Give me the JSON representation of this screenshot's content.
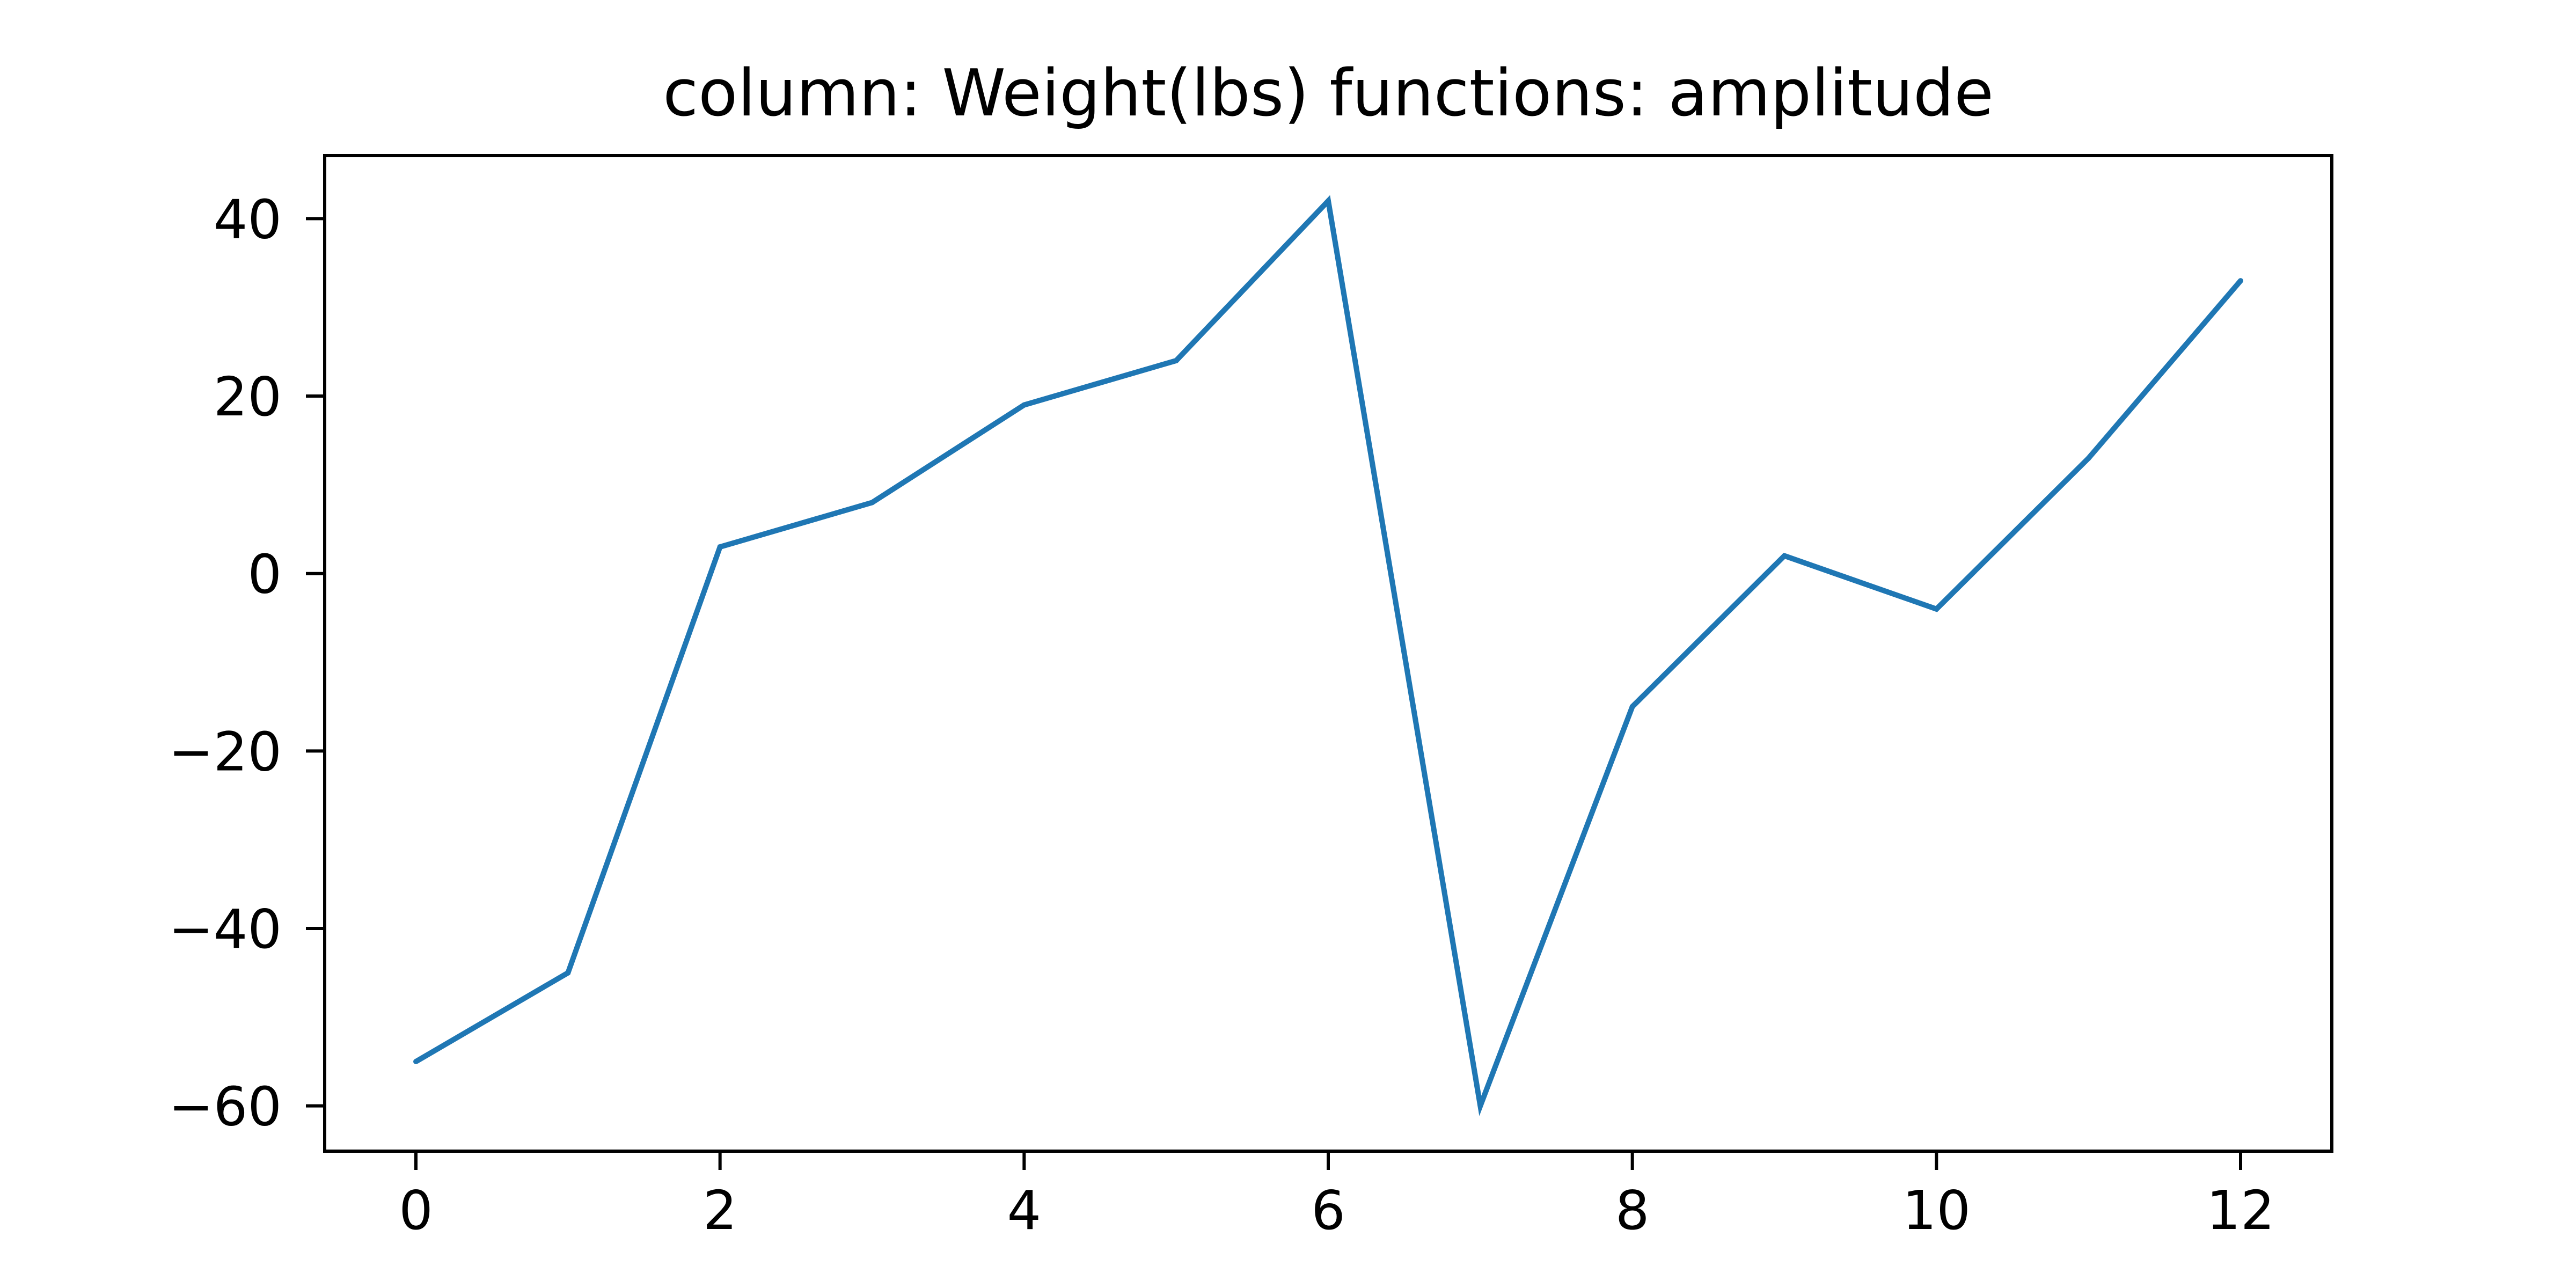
{
  "chart_data": {
    "type": "line",
    "title": "column: Weight(lbs) functions: amplitude",
    "xlabel": "",
    "ylabel": "",
    "x": [
      0,
      1,
      2,
      3,
      4,
      5,
      6,
      7,
      8,
      9,
      10,
      11,
      12
    ],
    "series": [
      {
        "values": [
          -55,
          -45,
          3,
          8,
          19,
          24,
          42,
          -60,
          -15,
          2,
          -4,
          13,
          33
        ],
        "color": "#1f77b4"
      }
    ],
    "xlim": [
      -0.6,
      12.6
    ],
    "ylim": [
      -65.1,
      47.1
    ],
    "xticks": [
      0,
      2,
      4,
      6,
      8,
      10,
      12
    ],
    "xtick_labels": [
      "0",
      "2",
      "4",
      "6",
      "8",
      "10",
      "12"
    ],
    "yticks": [
      40,
      20,
      0,
      -20,
      -40,
      -60
    ],
    "ytick_labels": [
      "40",
      "20",
      "0",
      "−20",
      "−40",
      "−60"
    ],
    "grid": false,
    "legend": false
  }
}
